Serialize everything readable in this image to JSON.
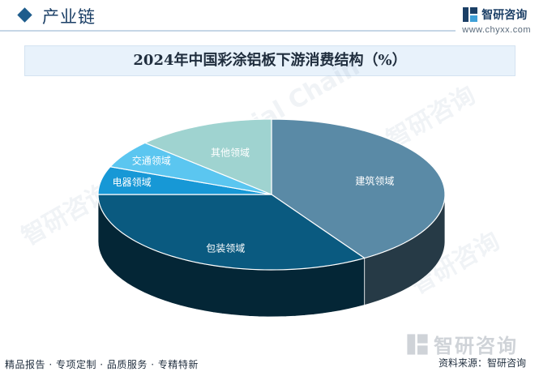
{
  "header": {
    "section_title": "产业链",
    "brand_name": "智研咨询",
    "brand_url": "www.chyxx.com"
  },
  "footer": {
    "tagline": "精品报告 · 专项定制 · 品质服务 · 专精特新",
    "source": "资料来源：智研咨询",
    "logo_text": "智研咨询"
  },
  "colors": {
    "construction": "#5a8aa6",
    "packaging": "#0a5a80",
    "appliance": "#1798d6",
    "transport": "#5bc6f0",
    "other": "#9fd3d0"
  },
  "chart_data": {
    "type": "pie",
    "title": "2024年中国彩涂铝板下游消费结构（%）",
    "slices": [
      {
        "label": "建筑领域",
        "value": 41
      },
      {
        "label": "包装领域",
        "value": 34
      },
      {
        "label": "电器领域",
        "value": 6
      },
      {
        "label": "交通领域",
        "value": 6
      },
      {
        "label": "其他领域",
        "value": 13
      }
    ],
    "start_angle_deg": 0,
    "direction": "clockwise-from-top"
  }
}
